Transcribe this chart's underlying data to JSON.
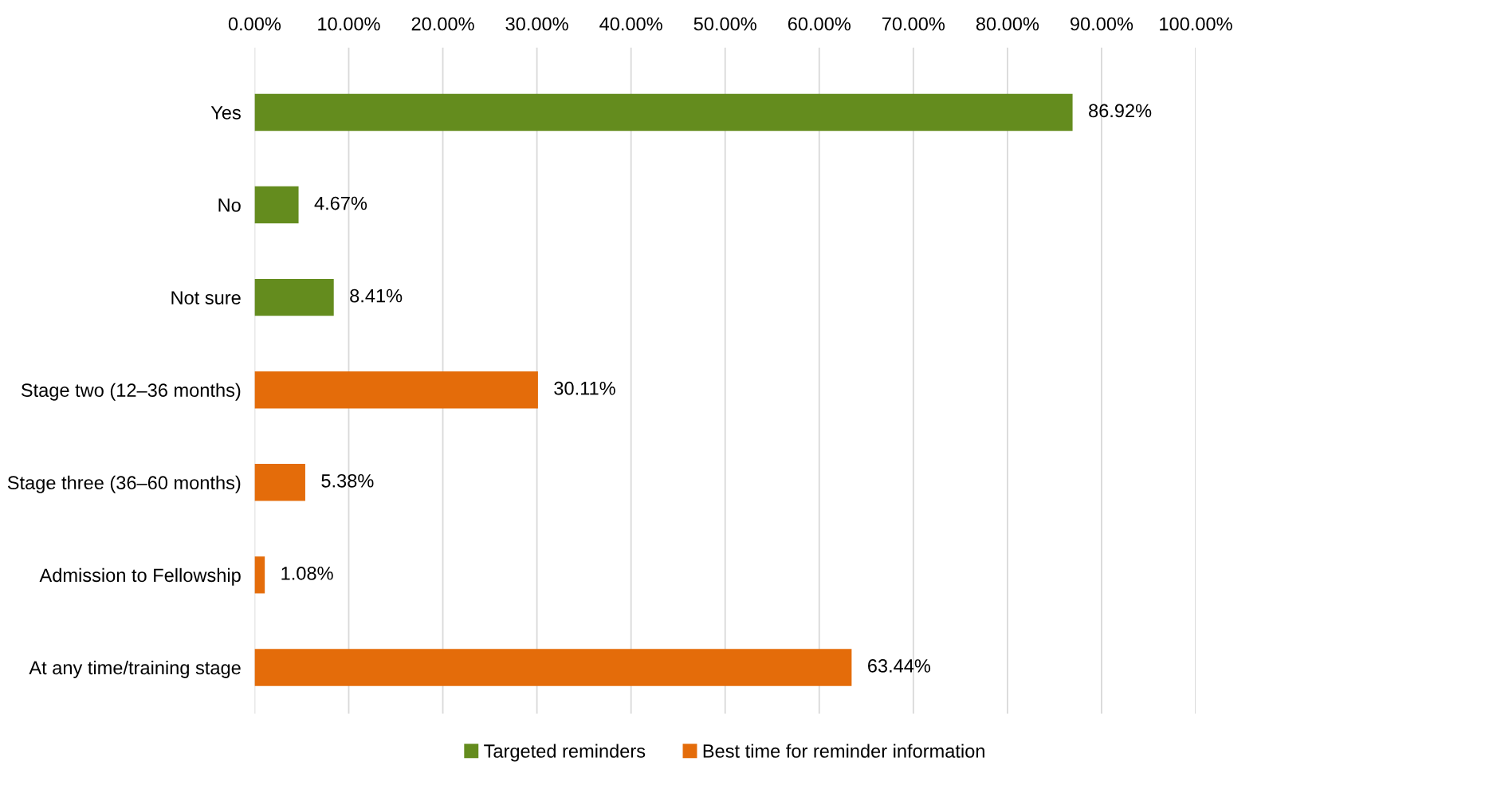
{
  "chart_data": {
    "type": "bar",
    "orientation": "horizontal",
    "categories": [
      "Yes",
      "No",
      "Not sure",
      "Stage two (12–36 months)",
      "Stage three (36–60 months)",
      "Admission to Fellowship",
      "At any time/training stage"
    ],
    "series": [
      {
        "name": "Targeted reminders",
        "color": "#648c1e",
        "values": [
          86.92,
          4.67,
          8.41,
          null,
          null,
          null,
          null
        ],
        "value_labels": [
          "86.92%",
          "4.67%",
          "8.41%",
          null,
          null,
          null,
          null
        ]
      },
      {
        "name": "Best time for reminder information",
        "color": "#e46c0a",
        "values": [
          null,
          null,
          null,
          30.11,
          5.38,
          1.08,
          63.44
        ],
        "value_labels": [
          null,
          null,
          null,
          "30.11%",
          "5.38%",
          "1.08%",
          "63.44%"
        ]
      }
    ],
    "xlim": [
      0,
      100
    ],
    "xticks": [
      {
        "value": 0,
        "label": "0.00%"
      },
      {
        "value": 10,
        "label": "10.00%"
      },
      {
        "value": 20,
        "label": "20.00%"
      },
      {
        "value": 30,
        "label": "30.00%"
      },
      {
        "value": 40,
        "label": "40.00%"
      },
      {
        "value": 50,
        "label": "50.00%"
      },
      {
        "value": 60,
        "label": "60.00%"
      },
      {
        "value": 70,
        "label": "70.00%"
      },
      {
        "value": 80,
        "label": "80.00%"
      },
      {
        "value": 90,
        "label": "90.00%"
      },
      {
        "value": 100,
        "label": "100.00%"
      }
    ],
    "grid": "x",
    "legend": "bottom"
  }
}
